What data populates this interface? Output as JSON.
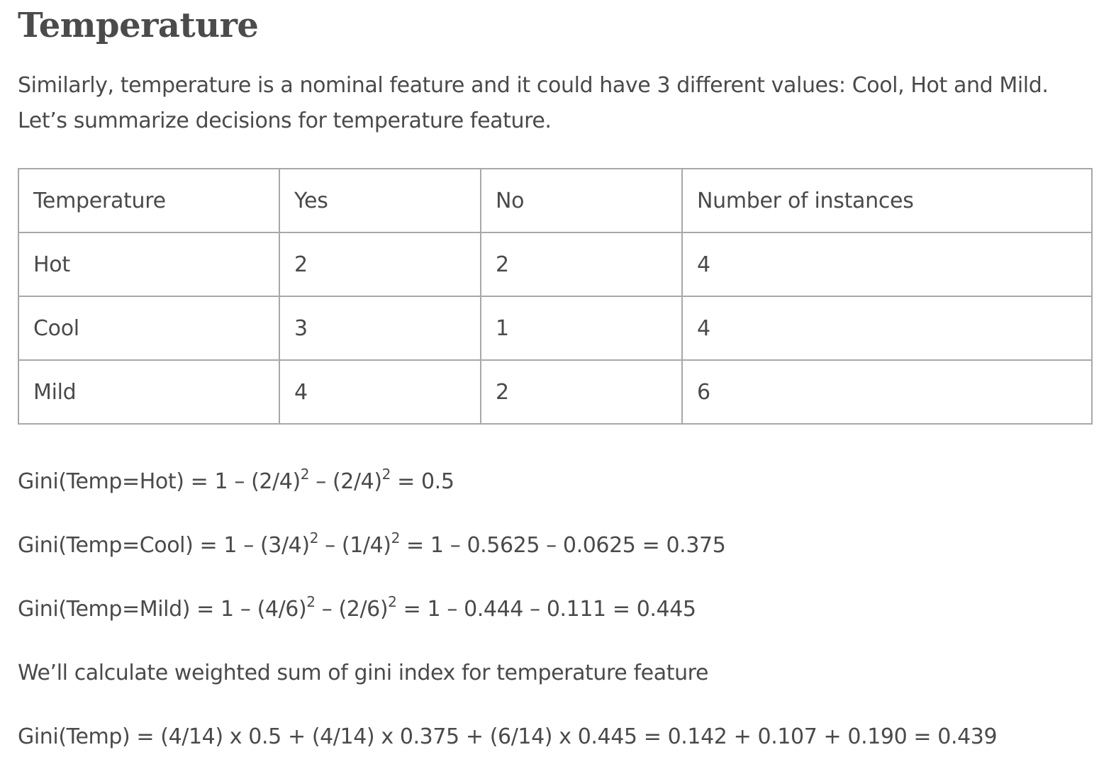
{
  "heading": "Temperature",
  "intro": "Similarly, temperature is a nominal feature and it could have 3 different values: Cool, Hot and Mild. Let’s summarize decisions for temperature feature.",
  "table": {
    "headers": [
      "Temperature",
      "Yes",
      "No",
      "Number of instances"
    ],
    "rows": [
      [
        "Hot",
        "2",
        "2",
        "4"
      ],
      [
        "Cool",
        "3",
        "1",
        "4"
      ],
      [
        "Mild",
        "4",
        "2",
        "6"
      ]
    ]
  },
  "equations": {
    "gini_hot": {
      "a": "Gini(Temp=Hot) = 1 – (2/4)",
      "exp1": "2",
      "b": " – (2/4)",
      "exp2": "2",
      "c": " = 0.5"
    },
    "gini_cool": {
      "a": "Gini(Temp=Cool) = 1 – (3/4)",
      "exp1": "2",
      "b": " – (1/4)",
      "exp2": "2",
      "c": " = 1 – 0.5625 – 0.0625 = 0.375"
    },
    "gini_mild": {
      "a": "Gini(Temp=Mild) = 1 – (4/6)",
      "exp1": "2",
      "b": " – (2/6)",
      "exp2": "2",
      "c": " = 1 – 0.444 – 0.111 = 0.445"
    }
  },
  "weighted_intro": "We’ll calculate weighted sum of gini index for temperature feature",
  "weighted_result": "Gini(Temp) = (4/14) x 0.5 + (4/14) x 0.375 + (6/14) x 0.445 = 0.142 + 0.107 + 0.190 = 0.439"
}
